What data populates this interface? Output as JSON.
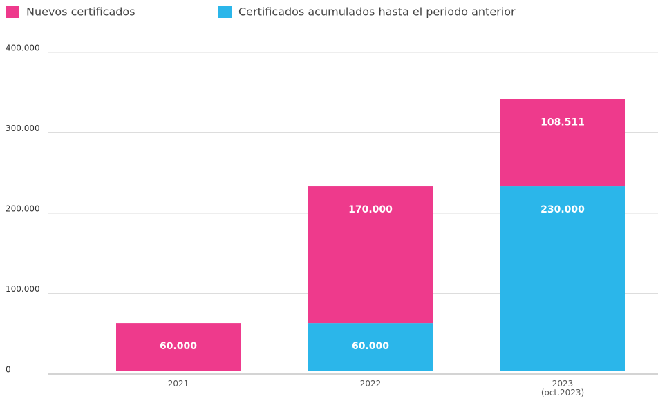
{
  "chart_data": {
    "type": "stacked_bar",
    "categories": [
      "2021",
      "2022",
      "2023\n(oct.2023)"
    ],
    "series": [
      {
        "name": "Nuevos certificados",
        "color": "#ee3a8c",
        "values": [
          60000,
          170000,
          108511
        ],
        "value_labels": [
          "60.000",
          "170.000",
          "108.511"
        ]
      },
      {
        "name": "Certificados acumulados hasta el periodo anterior",
        "color": "#2bb6ea",
        "values": [
          null,
          60000,
          230000
        ],
        "value_labels": [
          null,
          "60.000",
          "230.000"
        ]
      }
    ],
    "ylim": [
      0,
      400000
    ],
    "yticks": [
      0,
      {
        "value": 100000,
        "label": "100.000"
      },
      {
        "value": 200000,
        "label": "200.000"
      },
      {
        "value": 300000,
        "label": "300.000"
      },
      {
        "value": 400000,
        "label": "400.000"
      }
    ],
    "grid": true,
    "legend": "top"
  }
}
